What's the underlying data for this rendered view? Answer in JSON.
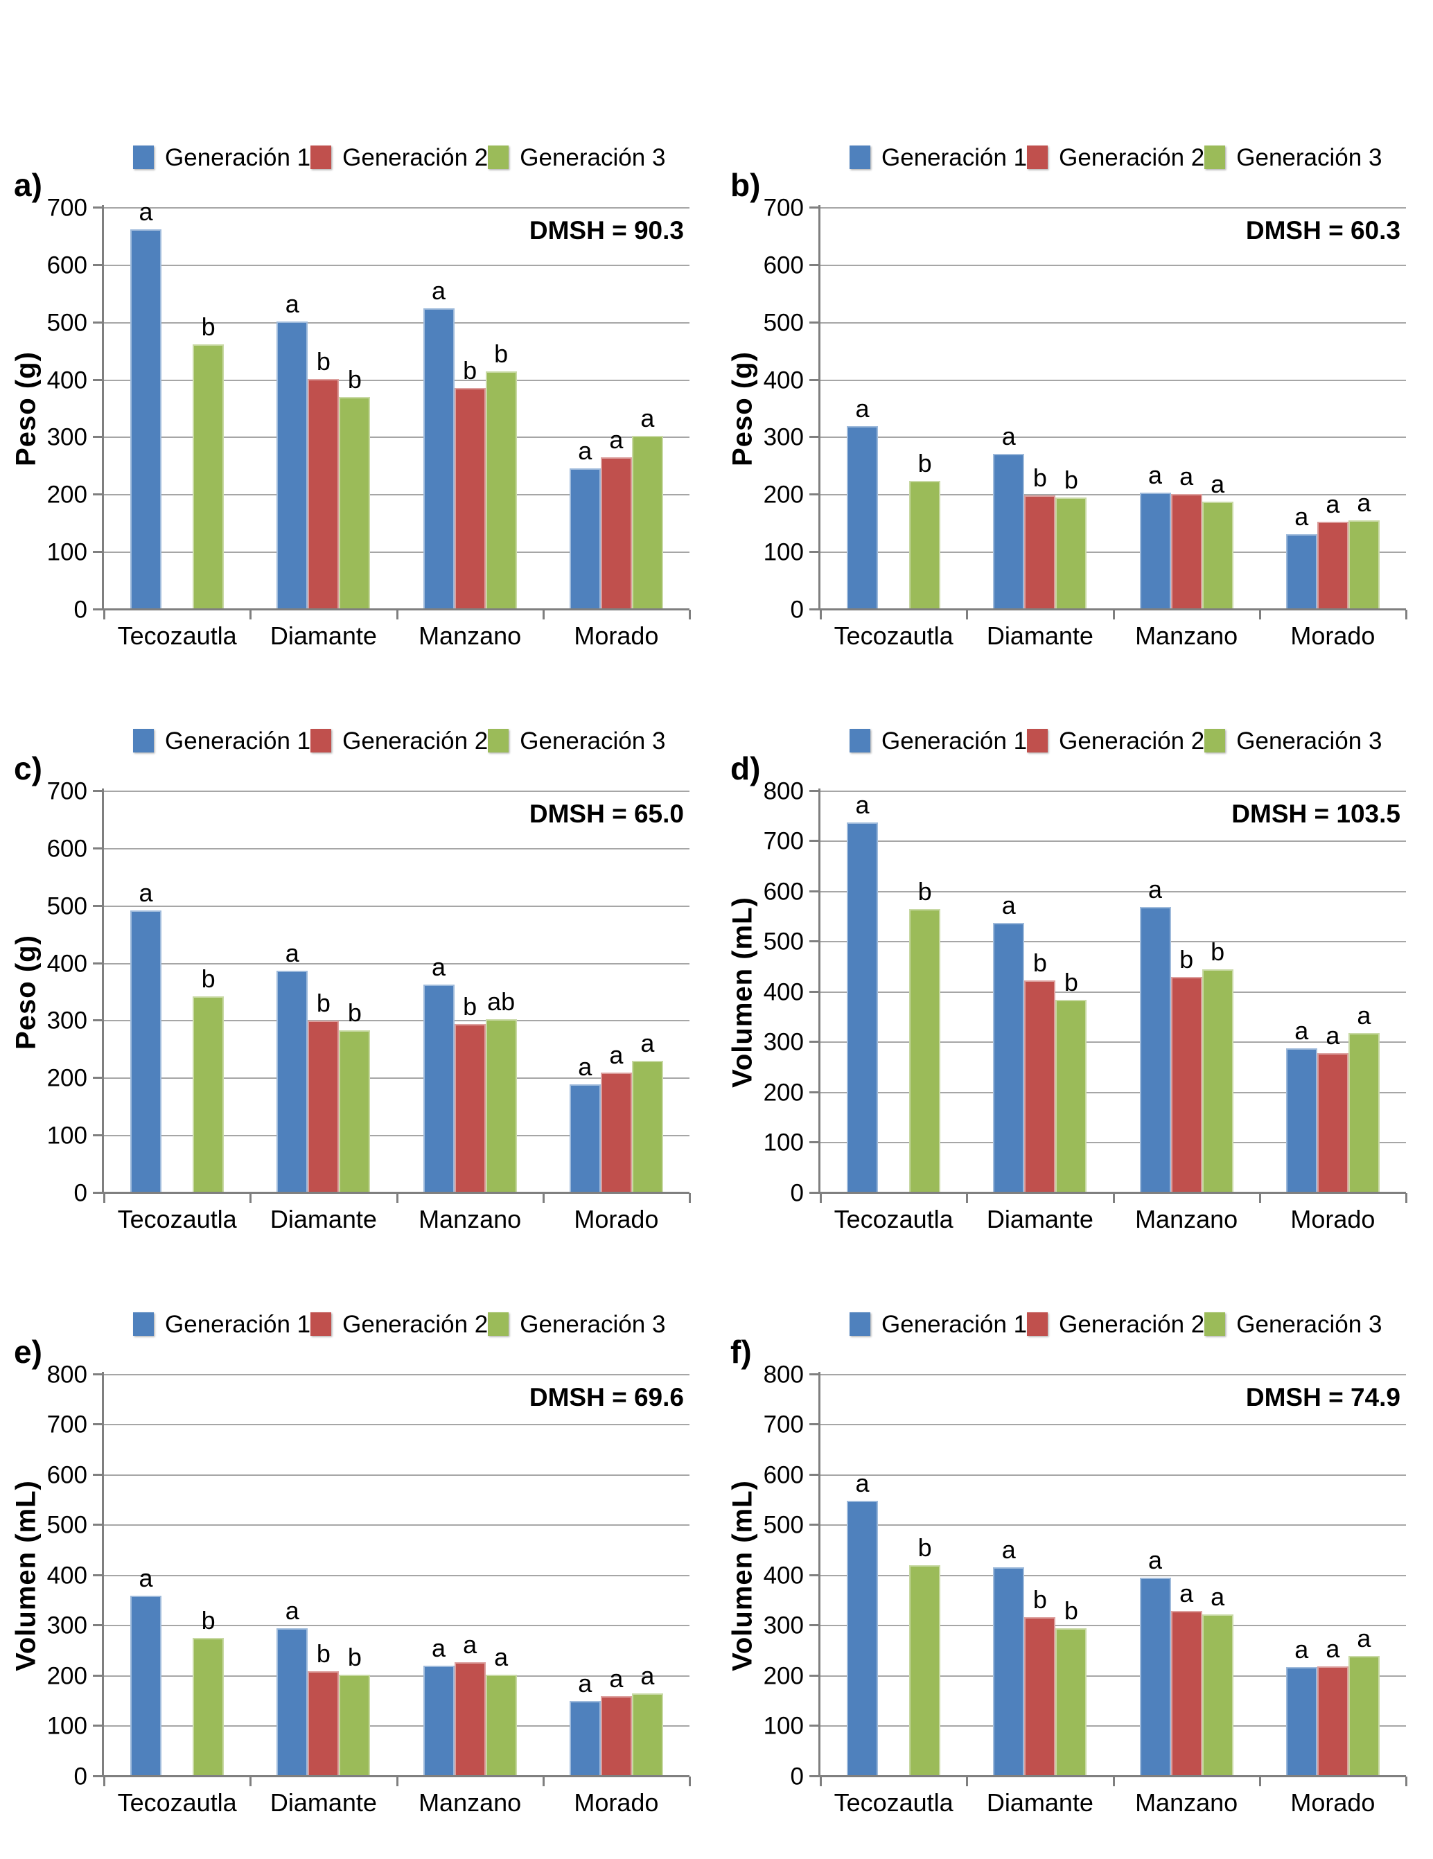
{
  "chart_data": [
    {
      "id": "a",
      "panel_label": "a)",
      "type": "bar",
      "ylabel": "Peso (g)",
      "ylim": [
        0,
        700
      ],
      "ytick_step": 100,
      "yticks": [
        0,
        100,
        200,
        300,
        400,
        500,
        600,
        700
      ],
      "annotation": "DMSH = 90.3",
      "grid": true,
      "legend_position": "top",
      "categories": [
        "Tecozautla",
        "Diamante",
        "Manzano",
        "Morado"
      ],
      "series": [
        {
          "name": "Generación 1",
          "color": "#4F81BD",
          "values": [
            662,
            502,
            525,
            246
          ],
          "letters": [
            "a",
            "a",
            "a",
            "a"
          ]
        },
        {
          "name": "Generación 2",
          "color": "#C0504D",
          "values": [
            null,
            402,
            386,
            265
          ],
          "letters": [
            null,
            "b",
            "b",
            "a"
          ]
        },
        {
          "name": "Generación 3",
          "color": "#9BBB59",
          "values": [
            462,
            371,
            415,
            303
          ],
          "letters": [
            "b",
            "b",
            "b",
            "a"
          ]
        }
      ]
    },
    {
      "id": "b",
      "panel_label": "b)",
      "type": "bar",
      "ylabel": "Peso (g)",
      "ylim": [
        0,
        700
      ],
      "ytick_step": 100,
      "yticks": [
        0,
        100,
        200,
        300,
        400,
        500,
        600,
        700
      ],
      "annotation": "DMSH = 60.3",
      "grid": true,
      "legend_position": "top",
      "categories": [
        "Tecozautla",
        "Diamante",
        "Manzano",
        "Morado"
      ],
      "series": [
        {
          "name": "Generación 1",
          "color": "#4F81BD",
          "values": [
            320,
            272,
            204,
            132
          ],
          "letters": [
            "a",
            "a",
            "a",
            "a"
          ]
        },
        {
          "name": "Generación 2",
          "color": "#C0504D",
          "values": [
            null,
            199,
            201,
            153
          ],
          "letters": [
            null,
            "b",
            "a",
            "a"
          ]
        },
        {
          "name": "Generación 3",
          "color": "#9BBB59",
          "values": [
            224,
            195,
            188,
            156
          ],
          "letters": [
            "b",
            "b",
            "a",
            "a"
          ]
        }
      ]
    },
    {
      "id": "c",
      "panel_label": "c)",
      "type": "bar",
      "ylabel": "Peso (g)",
      "ylim": [
        0,
        700
      ],
      "ytick_step": 100,
      "yticks": [
        0,
        100,
        200,
        300,
        400,
        500,
        600,
        700
      ],
      "annotation": "DMSH = 65.0",
      "grid": true,
      "legend_position": "top",
      "categories": [
        "Tecozautla",
        "Diamante",
        "Manzano",
        "Morado"
      ],
      "series": [
        {
          "name": "Generación 1",
          "color": "#4F81BD",
          "values": [
            493,
            388,
            363,
            190
          ],
          "letters": [
            "a",
            "a",
            "a",
            "a"
          ]
        },
        {
          "name": "Generación 2",
          "color": "#C0504D",
          "values": [
            null,
            301,
            294,
            210
          ],
          "letters": [
            null,
            "b",
            "b",
            "a"
          ]
        },
        {
          "name": "Generación 3",
          "color": "#9BBB59",
          "values": [
            343,
            284,
            303,
            230
          ],
          "letters": [
            "b",
            "b",
            "ab",
            "a"
          ]
        }
      ]
    },
    {
      "id": "d",
      "panel_label": "d)",
      "type": "bar",
      "ylabel": "Volumen (mL)",
      "ylim": [
        0,
        800
      ],
      "ytick_step": 100,
      "yticks": [
        0,
        100,
        200,
        300,
        400,
        500,
        600,
        700,
        800
      ],
      "annotation": "DMSH = 103.5",
      "grid": true,
      "legend_position": "top",
      "categories": [
        "Tecozautla",
        "Diamante",
        "Manzano",
        "Morado"
      ],
      "series": [
        {
          "name": "Generación 1",
          "color": "#4F81BD",
          "values": [
            738,
            538,
            570,
            288
          ],
          "letters": [
            "a",
            "a",
            "a",
            "a"
          ]
        },
        {
          "name": "Generación 2",
          "color": "#C0504D",
          "values": [
            null,
            424,
            430,
            278
          ],
          "letters": [
            null,
            "b",
            "b",
            "a"
          ]
        },
        {
          "name": "Generación 3",
          "color": "#9BBB59",
          "values": [
            565,
            385,
            445,
            318
          ],
          "letters": [
            "b",
            "b",
            "b",
            "a"
          ]
        }
      ]
    },
    {
      "id": "e",
      "panel_label": "e)",
      "type": "bar",
      "ylabel": "Volumen (mL)",
      "ylim": [
        0,
        800
      ],
      "ytick_step": 100,
      "yticks": [
        0,
        100,
        200,
        300,
        400,
        500,
        600,
        700,
        800
      ],
      "annotation": "DMSH = 69.6",
      "grid": true,
      "legend_position": "top",
      "categories": [
        "Tecozautla",
        "Diamante",
        "Manzano",
        "Morado"
      ],
      "series": [
        {
          "name": "Generación 1",
          "color": "#4F81BD",
          "values": [
            360,
            295,
            221,
            151
          ],
          "letters": [
            "a",
            "a",
            "a",
            "a"
          ]
        },
        {
          "name": "Generación 2",
          "color": "#C0504D",
          "values": [
            null,
            210,
            228,
            160
          ],
          "letters": [
            null,
            "b",
            "a",
            "a"
          ]
        },
        {
          "name": "Generación 3",
          "color": "#9BBB59",
          "values": [
            276,
            203,
            203,
            165
          ],
          "letters": [
            "b",
            "b",
            "a",
            "a"
          ]
        }
      ]
    },
    {
      "id": "f",
      "panel_label": "f)",
      "type": "bar",
      "ylabel": "Volumen (mL)",
      "ylim": [
        0,
        800
      ],
      "ytick_step": 100,
      "yticks": [
        0,
        100,
        200,
        300,
        400,
        500,
        600,
        700,
        800
      ],
      "annotation": "DMSH = 74.9",
      "grid": true,
      "legend_position": "top",
      "categories": [
        "Tecozautla",
        "Diamante",
        "Manzano",
        "Morado"
      ],
      "series": [
        {
          "name": "Generación 1",
          "color": "#4F81BD",
          "values": [
            549,
            416,
            396,
            218
          ],
          "letters": [
            "a",
            "a",
            "a",
            "a"
          ]
        },
        {
          "name": "Generación 2",
          "color": "#C0504D",
          "values": [
            null,
            317,
            330,
            219
          ],
          "letters": [
            null,
            "b",
            "a",
            "a"
          ]
        },
        {
          "name": "Generación 3",
          "color": "#9BBB59",
          "values": [
            421,
            295,
            323,
            240
          ],
          "letters": [
            "b",
            "b",
            "a",
            "a"
          ]
        }
      ]
    }
  ]
}
